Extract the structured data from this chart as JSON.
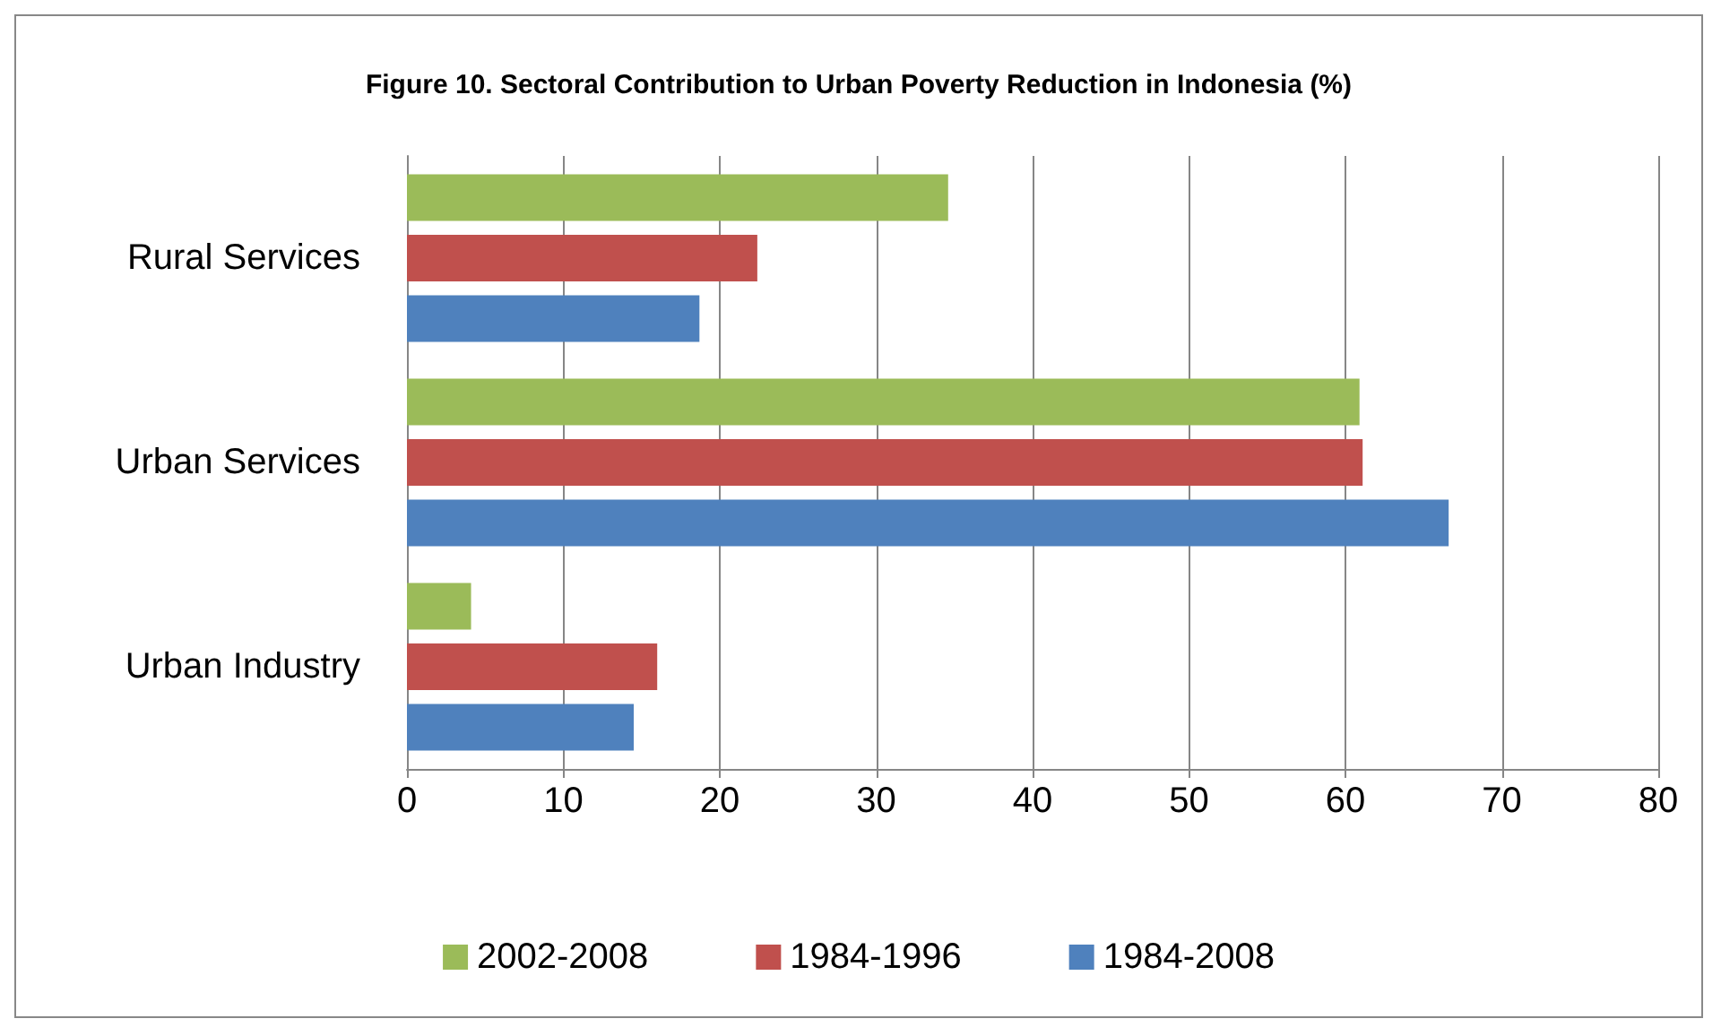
{
  "chart_data": {
    "type": "bar",
    "orientation": "horizontal",
    "title": "Figure 10. Sectoral Contribution to Urban Poverty Reduction in Indonesia (%)",
    "categories": [
      "Rural Services",
      "Urban Services",
      "Urban Industry"
    ],
    "series": [
      {
        "name": "2002-2008",
        "color": "#9bbb59",
        "values": [
          34.6,
          60.9,
          4.1
        ]
      },
      {
        "name": "1984-1996",
        "color": "#c0504d",
        "values": [
          22.4,
          61.1,
          16.0
        ]
      },
      {
        "name": "1984-2008",
        "color": "#4f81bd",
        "values": [
          18.7,
          66.6,
          14.5
        ]
      }
    ],
    "xlim": [
      0,
      80
    ],
    "xticks": [
      0,
      10,
      20,
      30,
      40,
      50,
      60,
      70,
      80
    ],
    "grid": "x",
    "legend": "bottom"
  }
}
